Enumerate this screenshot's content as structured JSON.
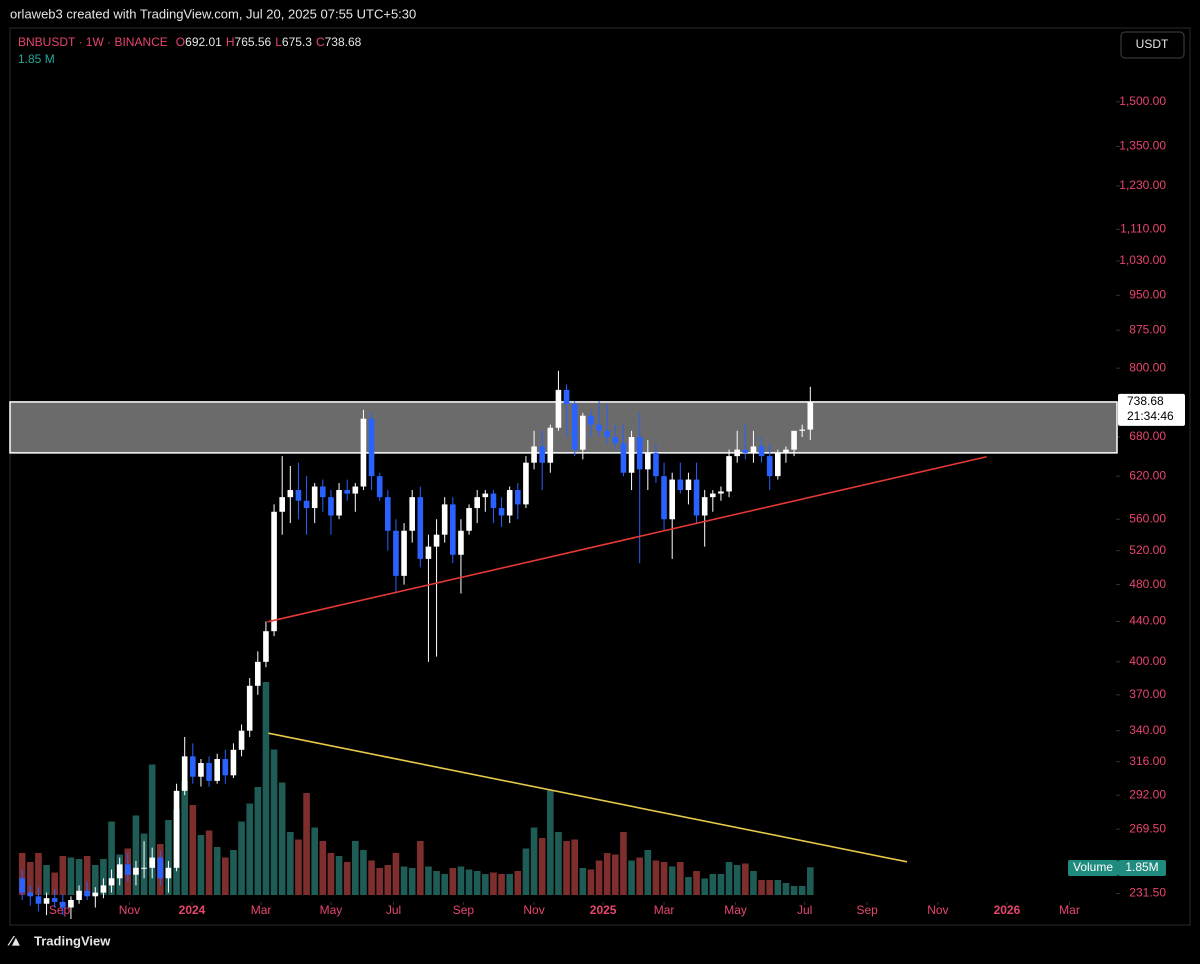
{
  "header": {
    "attribution": "orlaweb3 created with TradingView.com, Jul 20, 2025 07:55 UTC+5:30"
  },
  "footer": {
    "brand": "TradingView"
  },
  "chart_data": {
    "type": "candlestick",
    "symbol": "BNBUSDT · 1W · BINANCE",
    "ohlc_letters": [
      "O",
      "H",
      "L",
      "C"
    ],
    "currency": "USDT",
    "volume_name": "Volume",
    "volume_legend_label": "1.85 M",
    "volume_axis_label": "1.85M",
    "countdown": "21:34:46",
    "log_scale": true,
    "up_color": "#ffffff",
    "down_color": "#2962ff",
    "volume_up_color": "#1e5c55",
    "volume_down_color": "#7f2e2e",
    "open": [
      240,
      232,
      230,
      226,
      229,
      227,
      224,
      228,
      233,
      230,
      232,
      236,
      240,
      248,
      242,
      246,
      246,
      252,
      240,
      246,
      295,
      320,
      305,
      315,
      302,
      318,
      306,
      325,
      340,
      378,
      400,
      430,
      570,
      590,
      600,
      585,
      575,
      605,
      590,
      565,
      600,
      595,
      605,
      710,
      620,
      590,
      545,
      490,
      545,
      590,
      510,
      525,
      540,
      580,
      515,
      545,
      575,
      590,
      595,
      575,
      565,
      600,
      580,
      640,
      665,
      640,
      695,
      760,
      735,
      660,
      715,
      700,
      690,
      680,
      670,
      625,
      680,
      630,
      655,
      620,
      560,
      615,
      600,
      615,
      565,
      590,
      595,
      598,
      650,
      660,
      655,
      665,
      650,
      620,
      655,
      660,
      690,
      692.01
    ],
    "high": [
      245,
      236,
      235,
      232,
      234,
      231,
      230,
      236,
      238,
      235,
      240,
      245,
      252,
      255,
      250,
      262,
      258,
      256,
      250,
      300,
      335,
      330,
      318,
      320,
      322,
      325,
      330,
      345,
      385,
      410,
      440,
      580,
      650,
      635,
      640,
      620,
      610,
      615,
      600,
      610,
      615,
      610,
      725,
      720,
      625,
      600,
      560,
      555,
      600,
      605,
      540,
      560,
      590,
      590,
      560,
      580,
      600,
      600,
      600,
      590,
      605,
      610,
      650,
      690,
      690,
      700,
      795,
      770,
      740,
      720,
      725,
      740,
      735,
      700,
      700,
      690,
      720,
      675,
      670,
      640,
      625,
      640,
      625,
      640,
      600,
      600,
      605,
      660,
      690,
      700,
      690,
      680,
      670,
      660,
      665,
      690,
      700,
      765.56
    ],
    "low": [
      228,
      225,
      222,
      220,
      224,
      220,
      218,
      226,
      228,
      224,
      229,
      232,
      236,
      238,
      236,
      240,
      240,
      236,
      232,
      244,
      292,
      300,
      298,
      298,
      300,
      300,
      304,
      320,
      335,
      370,
      395,
      425,
      540,
      555,
      560,
      540,
      555,
      570,
      540,
      560,
      585,
      570,
      600,
      600,
      585,
      520,
      470,
      480,
      530,
      500,
      400,
      405,
      530,
      505,
      470,
      540,
      555,
      570,
      555,
      550,
      555,
      560,
      575,
      630,
      600,
      625,
      690,
      680,
      650,
      645,
      680,
      680,
      670,
      660,
      620,
      600,
      505,
      600,
      610,
      545,
      510,
      595,
      580,
      555,
      525,
      570,
      585,
      590,
      640,
      645,
      640,
      640,
      600,
      615,
      640,
      650,
      680,
      675.3
    ],
    "close": [
      232,
      230,
      226,
      229,
      227,
      224,
      228,
      233,
      230,
      232,
      236,
      240,
      248,
      242,
      246,
      246,
      252,
      240,
      246,
      295,
      320,
      305,
      315,
      302,
      318,
      306,
      325,
      340,
      378,
      400,
      430,
      570,
      590,
      600,
      585,
      575,
      605,
      590,
      565,
      600,
      595,
      605,
      710,
      620,
      590,
      545,
      490,
      545,
      590,
      510,
      525,
      540,
      580,
      515,
      545,
      575,
      590,
      595,
      575,
      565,
      600,
      580,
      640,
      665,
      640,
      695,
      760,
      735,
      660,
      715,
      700,
      690,
      680,
      670,
      625,
      680,
      630,
      655,
      620,
      560,
      615,
      600,
      615,
      565,
      590,
      595,
      598,
      650,
      660,
      655,
      665,
      650,
      620,
      655,
      660,
      690,
      692,
      738.68
    ],
    "volume": [
      2.8,
      2.2,
      2.8,
      2.0,
      1.5,
      2.6,
      2.5,
      2.4,
      2.6,
      2.0,
      2.4,
      4.9,
      2.7,
      3.1,
      5.3,
      4.1,
      8.7,
      3.4,
      5.0,
      5.7,
      7.6,
      6.0,
      4.0,
      4.3,
      3.2,
      2.5,
      3.0,
      4.9,
      6.1,
      7.2,
      14.2,
      9.7,
      7.5,
      4.2,
      3.7,
      6.8,
      4.5,
      3.6,
      2.8,
      2.6,
      2.2,
      3.6,
      3.0,
      2.3,
      1.8,
      2.0,
      2.8,
      1.9,
      1.8,
      3.6,
      1.9,
      1.6,
      1.4,
      1.8,
      1.9,
      1.7,
      1.6,
      1.4,
      1.5,
      1.4,
      1.4,
      1.6,
      3.1,
      4.5,
      3.8,
      7.0,
      4.2,
      3.6,
      3.7,
      1.8,
      1.7,
      2.3,
      2.8,
      2.7,
      4.2,
      2.3,
      2.5,
      3.0,
      2.3,
      2.2,
      1.9,
      2.2,
      1.2,
      1.6,
      1.1,
      1.4,
      1.4,
      2.2,
      2.0,
      2.1,
      1.6,
      1.0,
      1.0,
      1.0,
      0.8,
      0.6,
      0.6,
      1.85
    ],
    "ylim": [
      228,
      1777
    ],
    "yticks": [
      {
        "value": 1500,
        "label": "1,500.00"
      },
      {
        "value": 1350,
        "label": "1,350.00"
      },
      {
        "value": 1230,
        "label": "1,230.00"
      },
      {
        "value": 1110,
        "label": "1,110.00"
      },
      {
        "value": 1030,
        "label": "1,030.00"
      },
      {
        "value": 950,
        "label": "950.00"
      },
      {
        "value": 875,
        "label": "875.00"
      },
      {
        "value": 800,
        "label": "800.00"
      },
      {
        "value": 680,
        "label": "680.00"
      },
      {
        "value": 620,
        "label": "620.00"
      },
      {
        "value": 560,
        "label": "560.00"
      },
      {
        "value": 520,
        "label": "520.00"
      },
      {
        "value": 480,
        "label": "480.00"
      },
      {
        "value": 440,
        "label": "440.00"
      },
      {
        "value": 400,
        "label": "400.00"
      },
      {
        "value": 370,
        "label": "370.00"
      },
      {
        "value": 340,
        "label": "340.00"
      },
      {
        "value": 316,
        "label": "316.00"
      },
      {
        "value": 292,
        "label": "292.00"
      },
      {
        "value": 269.5,
        "label": "269.50"
      },
      {
        "value": 231.5,
        "label": "231.50"
      }
    ],
    "xlim": [
      -1.5,
      134.5
    ],
    "xticks": [
      {
        "value": 4.6,
        "label": "Sep"
      },
      {
        "value": 13.2,
        "label": "Nov"
      },
      {
        "value": 20.9,
        "label": "2024"
      },
      {
        "value": 29.4,
        "label": "Mar"
      },
      {
        "value": 38.0,
        "label": "May"
      },
      {
        "value": 45.7,
        "label": "Jul"
      },
      {
        "value": 54.3,
        "label": "Sep"
      },
      {
        "value": 63.0,
        "label": "Nov"
      },
      {
        "value": 71.5,
        "label": "2025"
      },
      {
        "value": 79.0,
        "label": "Mar"
      },
      {
        "value": 87.8,
        "label": "May"
      },
      {
        "value": 96.3,
        "label": "Jul"
      },
      {
        "value": 104.0,
        "label": "Sep"
      },
      {
        "value": 112.7,
        "label": "Nov"
      },
      {
        "value": 121.2,
        "label": "2026"
      },
      {
        "value": 128.9,
        "label": "Mar"
      }
    ],
    "zone": [
      655,
      738.68
    ],
    "trendlines": [
      {
        "color": "#e53935",
        "x": [
          30.2,
          118.7
        ],
        "y": [
          439.6,
          649
        ]
      },
      {
        "color": "#e6c84a",
        "x": [
          30.3,
          108.9
        ],
        "y": [
          338,
          249.5
        ]
      }
    ]
  }
}
